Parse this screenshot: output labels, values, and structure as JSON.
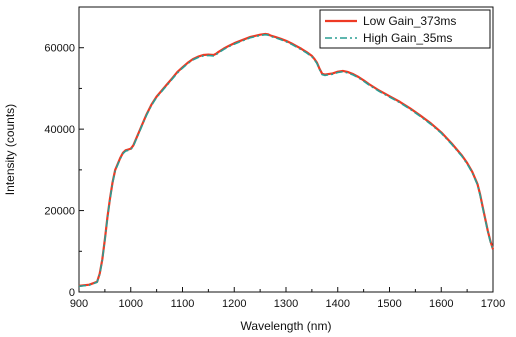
{
  "chart_data": {
    "type": "line",
    "title": "",
    "xlabel": "Wavelength (nm)",
    "ylabel": "Intensity (counts)",
    "xlim": [
      900,
      1700
    ],
    "ylim": [
      0,
      70000
    ],
    "xticks": [
      900,
      1000,
      1100,
      1200,
      1300,
      1400,
      1500,
      1600,
      1700
    ],
    "xtick_labels": [
      "900",
      "1000",
      "1100",
      "1200",
      "1300",
      "1400",
      "1500",
      "1600",
      "1700"
    ],
    "yticks": [
      0,
      20000,
      40000,
      60000
    ],
    "ytick_labels": [
      "0",
      "20000",
      "40000",
      "60000"
    ],
    "grid": false,
    "legend": "top-right",
    "series": [
      {
        "name": "Low Gain_373ms",
        "color": "#ee3a24",
        "style": "solid",
        "x": [
          900,
          920,
          935,
          940,
          945,
          950,
          955,
          960,
          965,
          970,
          975,
          980,
          985,
          990,
          995,
          1000,
          1005,
          1010,
          1020,
          1030,
          1040,
          1050,
          1060,
          1070,
          1080,
          1090,
          1100,
          1110,
          1120,
          1130,
          1140,
          1150,
          1160,
          1165,
          1170,
          1180,
          1190,
          1200,
          1210,
          1220,
          1230,
          1240,
          1250,
          1260,
          1265,
          1270,
          1280,
          1290,
          1300,
          1310,
          1320,
          1330,
          1340,
          1350,
          1355,
          1360,
          1365,
          1370,
          1375,
          1380,
          1390,
          1400,
          1410,
          1420,
          1430,
          1440,
          1450,
          1460,
          1480,
          1500,
          1520,
          1540,
          1560,
          1580,
          1600,
          1620,
          1640,
          1650,
          1660,
          1670,
          1675,
          1680,
          1685,
          1690,
          1695,
          1700
        ],
        "y": [
          1500,
          1800,
          2500,
          4500,
          8000,
          13000,
          18500,
          23000,
          27000,
          30000,
          31500,
          33000,
          34200,
          34800,
          35000,
          35200,
          36000,
          37500,
          40500,
          43500,
          46000,
          48000,
          49500,
          51000,
          52500,
          54000,
          55200,
          56300,
          57200,
          57800,
          58200,
          58300,
          58200,
          58500,
          59000,
          59800,
          60500,
          61100,
          61600,
          62100,
          62600,
          62900,
          63200,
          63400,
          63300,
          63000,
          62600,
          62200,
          61700,
          61100,
          60400,
          59700,
          58900,
          58000,
          57200,
          56300,
          54800,
          53600,
          53400,
          53500,
          53700,
          54100,
          54300,
          54000,
          53500,
          52800,
          52000,
          51100,
          49500,
          48100,
          46700,
          45100,
          43300,
          41400,
          39200,
          36500,
          33500,
          31700,
          29500,
          26500,
          24000,
          21000,
          18000,
          15000,
          12500,
          10500
        ]
      },
      {
        "name": "High Gain_35ms",
        "color": "#2a9d94",
        "style": "dash-dot",
        "x": [
          900,
          920,
          935,
          940,
          945,
          950,
          955,
          960,
          965,
          970,
          975,
          980,
          985,
          990,
          995,
          1000,
          1005,
          1010,
          1020,
          1030,
          1040,
          1050,
          1060,
          1070,
          1080,
          1090,
          1100,
          1110,
          1120,
          1130,
          1140,
          1150,
          1160,
          1165,
          1170,
          1180,
          1190,
          1200,
          1210,
          1220,
          1230,
          1240,
          1250,
          1260,
          1265,
          1270,
          1280,
          1290,
          1300,
          1310,
          1320,
          1330,
          1340,
          1350,
          1355,
          1360,
          1365,
          1370,
          1375,
          1380,
          1390,
          1400,
          1410,
          1420,
          1430,
          1440,
          1450,
          1460,
          1480,
          1500,
          1520,
          1540,
          1560,
          1580,
          1600,
          1620,
          1640,
          1650,
          1660,
          1670,
          1675,
          1680,
          1685,
          1690,
          1695,
          1700
        ],
        "y": [
          1400,
          1700,
          2400,
          4300,
          7800,
          12800,
          18300,
          22800,
          26800,
          29800,
          31300,
          32800,
          34000,
          34600,
          34800,
          35000,
          35800,
          37300,
          40300,
          43300,
          45800,
          47800,
          49300,
          50800,
          52300,
          53800,
          55000,
          56100,
          57000,
          57600,
          58000,
          58100,
          58000,
          58300,
          58800,
          59600,
          60300,
          60900,
          61400,
          61900,
          62400,
          62700,
          63000,
          63200,
          63100,
          62800,
          62400,
          62000,
          61500,
          60900,
          60200,
          59500,
          58700,
          57800,
          57000,
          56100,
          54600,
          53400,
          53200,
          53300,
          53500,
          53900,
          54100,
          53800,
          53300,
          52600,
          51800,
          50900,
          49300,
          47900,
          46500,
          44900,
          43100,
          41200,
          39000,
          36300,
          33300,
          31500,
          29300,
          26300,
          23800,
          20800,
          17800,
          14800,
          12300,
          10300
        ]
      }
    ]
  }
}
